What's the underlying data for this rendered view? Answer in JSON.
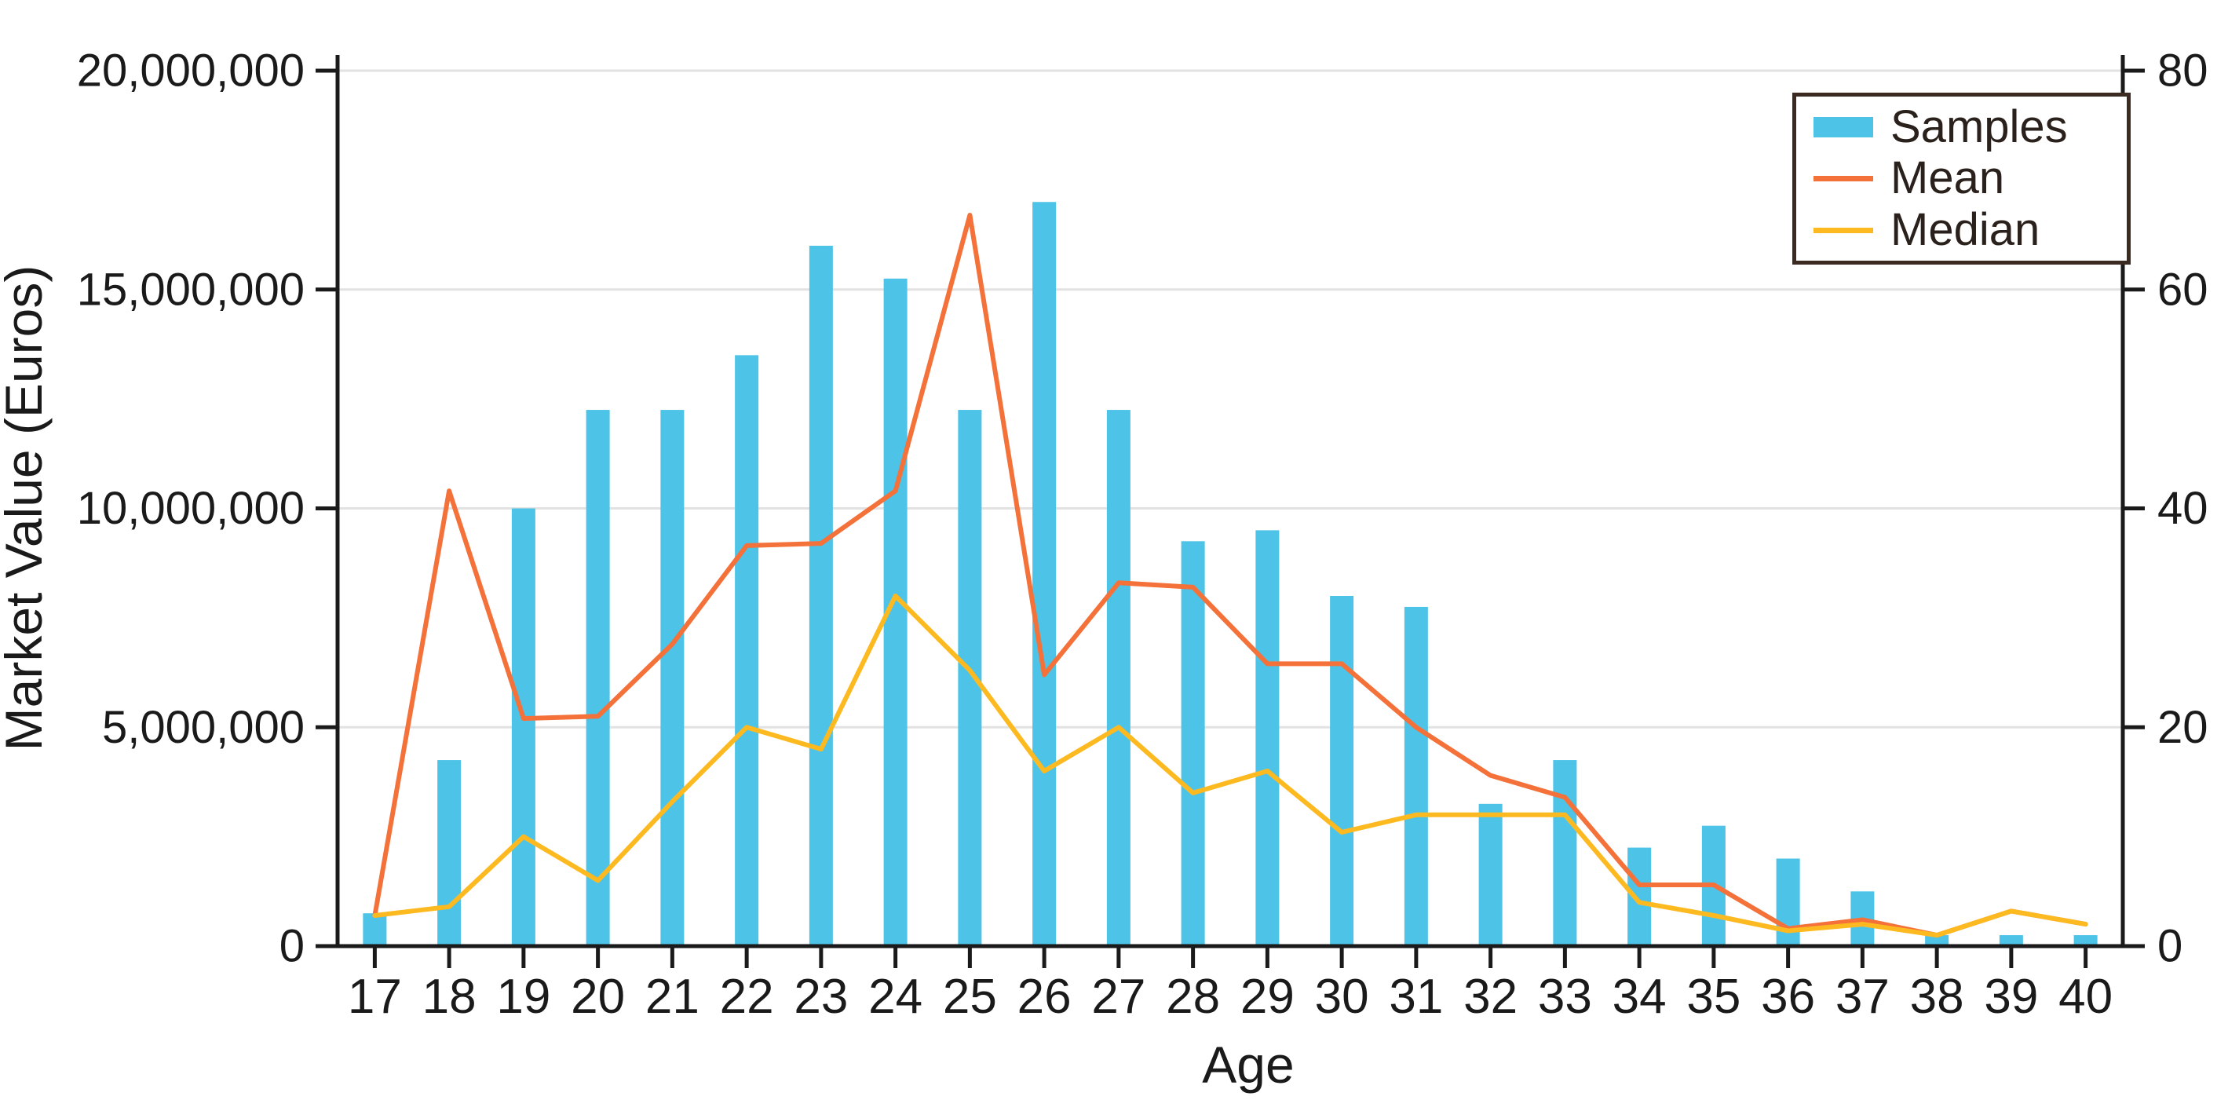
{
  "chart_data": {
    "type": "bar+line combo",
    "title": "",
    "xlabel": "Age",
    "ylabel_left": "Market Value (Euros)",
    "ylabel_right": "",
    "x": [
      17,
      18,
      19,
      20,
      21,
      22,
      23,
      24,
      25,
      26,
      27,
      28,
      29,
      30,
      31,
      32,
      33,
      34,
      35,
      36,
      37,
      38,
      39,
      40
    ],
    "x_tick_labels": [
      "17",
      "18",
      "19",
      "20",
      "21",
      "22",
      "23",
      "24",
      "25",
      "26",
      "27",
      "28",
      "29",
      "30",
      "31",
      "32",
      "33",
      "34",
      "35",
      "36",
      "37",
      "38",
      "39",
      "40"
    ],
    "ylim_left": [
      0,
      20000000
    ],
    "ylim_right": [
      0,
      80
    ],
    "y_left_ticks": {
      "values": [
        0,
        5000000,
        10000000,
        15000000,
        20000000
      ],
      "labels": [
        "0",
        "5,000,000",
        "10,000,000",
        "15,000,000",
        "20,000,000"
      ]
    },
    "y_right_ticks": {
      "values": [
        0,
        20,
        40,
        60,
        80
      ],
      "labels": [
        "0",
        "20",
        "40",
        "60",
        "80"
      ]
    },
    "grid": "horizontal gridlines at left-axis ticks, light gray",
    "legend_position": "top-right inside plot, dark border box",
    "series": [
      {
        "name": "Samples",
        "type": "bar",
        "axis": "right",
        "color": "#4ec3e8",
        "values": [
          3,
          17,
          40,
          49,
          49,
          54,
          64,
          61,
          49,
          68,
          49,
          37,
          38,
          32,
          31,
          13,
          17,
          9,
          11,
          8,
          5,
          1,
          1,
          1
        ]
      },
      {
        "name": "Mean",
        "type": "line",
        "axis": "left",
        "color": "#f4713a",
        "values": [
          700000,
          10400000,
          5200000,
          5250000,
          6900000,
          9150000,
          9200000,
          10400000,
          16700000,
          6200000,
          8300000,
          8200000,
          6450000,
          6450000,
          5000000,
          3900000,
          3400000,
          1400000,
          1400000,
          400000,
          600000,
          250000,
          800000,
          500000
        ]
      },
      {
        "name": "Median",
        "type": "line",
        "axis": "left",
        "color": "#fdb920",
        "values": [
          700000,
          900000,
          2500000,
          1500000,
          3300000,
          5000000,
          4500000,
          8000000,
          6300000,
          4000000,
          5000000,
          3500000,
          4000000,
          2600000,
          3000000,
          3000000,
          3000000,
          1000000,
          700000,
          350000,
          500000,
          250000,
          800000,
          500000
        ]
      }
    ]
  },
  "legend": {
    "items": [
      "Samples",
      "Mean",
      "Median"
    ]
  },
  "colors": {
    "bars": "#4ec3e8",
    "mean_line": "#f4713a",
    "median_line": "#fdb920",
    "axis": "#1a1a1a",
    "gridline": "#e2e2e2",
    "legend_border": "#3b2a21",
    "text": "#1a1a1a",
    "background": "#ffffff"
  }
}
